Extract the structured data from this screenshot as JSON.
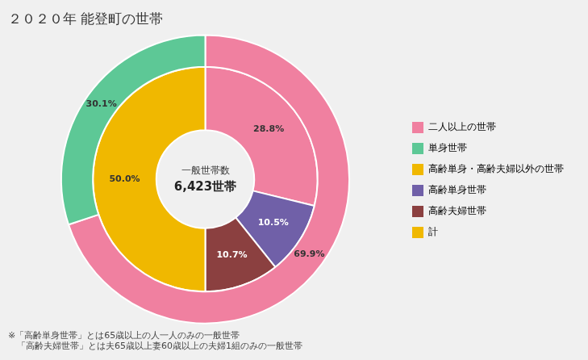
{
  "chart_data": {
    "type": "doughnut",
    "title": "２０２０年 能登町の世帯",
    "center_text": [
      "一般世帯数",
      "6,423世帯"
    ],
    "series": [
      {
        "values": [
          69.9,
          30.1
        ],
        "colors": [
          "#F080A0",
          "#5DC896"
        ],
        "value_labels": [
          "69.9%",
          "30.1%"
        ]
      },
      {
        "values": [
          28.8,
          10.5,
          10.7,
          50.0
        ],
        "colors": [
          "#F080A0",
          "#7060A8",
          "#8B4040",
          "#F0B800"
        ],
        "value_labels": [
          "28.8%",
          "10.5%",
          "10.7%",
          "50.0%"
        ]
      }
    ],
    "data_labels": true,
    "legend": "right",
    "legend_items": [
      {
        "name": "二人以上の世帯",
        "color": "#F080A0"
      },
      {
        "name": "単身世帯",
        "color": "#5DC896"
      },
      {
        "name": "高齢単身・高齢夫婦以外の世帯",
        "color": "#F0B800"
      },
      {
        "name": "高齢単身世帯",
        "color": "#7060A8"
      },
      {
        "name": "高齢夫婦世帯",
        "color": "#8B4040"
      },
      {
        "name": "計",
        "color": "#F0B800"
      }
    ],
    "footnotes": [
      "※「高齢単身世帯」とは65歳以上の人一人のみの一般世帯",
      "　「高齢夫婦世帯」とは夫65歳以上妻60歳以上の夫婦1組のみの一般世帯"
    ],
    "background_color": "#F0F0F0"
  }
}
